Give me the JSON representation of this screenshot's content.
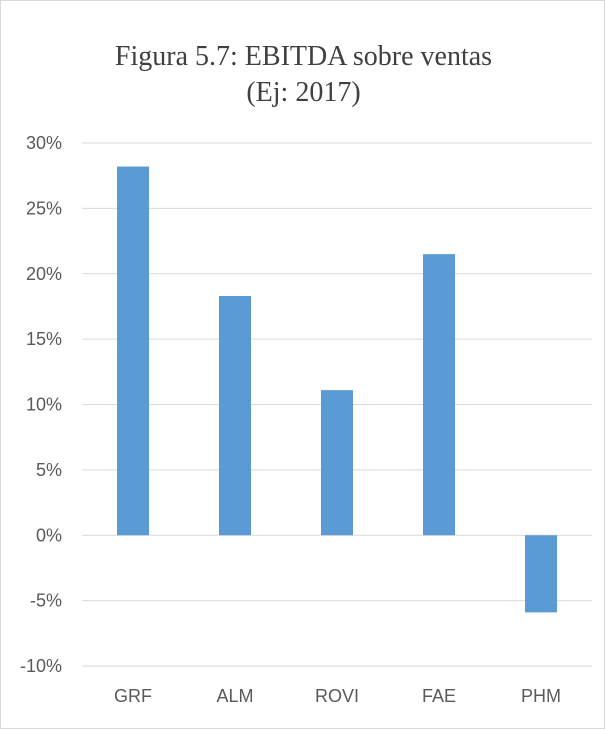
{
  "chart_data": {
    "type": "bar",
    "title_lines": [
      "Figura 5.7: EBITDA sobre ventas",
      "(Ej: 2017)"
    ],
    "xlabel": "",
    "ylabel": "",
    "categories": [
      "GRF",
      "ALM",
      "ROVI",
      "FAE",
      "PHM"
    ],
    "values": [
      28.2,
      18.3,
      11.1,
      21.5,
      -5.9
    ],
    "ylim": [
      -10,
      30
    ],
    "yticks": [
      -10,
      -5,
      0,
      5,
      10,
      15,
      20,
      25,
      30
    ],
    "ytick_labels": [
      "-10%",
      "-5%",
      "0%",
      "5%",
      "10%",
      "15%",
      "20%",
      "25%",
      "30%"
    ],
    "grid": true,
    "legend": "none",
    "colors": {
      "bar": "#5b9bd5",
      "grid": "#d9d9d9",
      "text": "#595959"
    }
  }
}
